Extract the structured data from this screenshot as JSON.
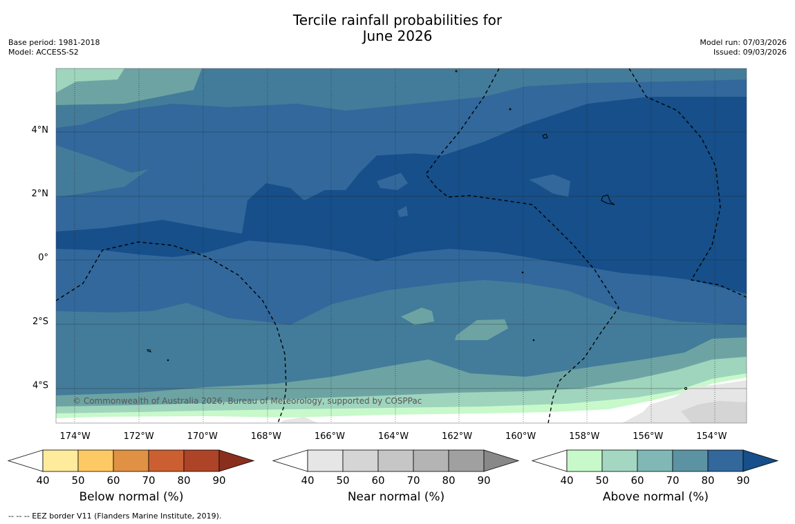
{
  "title": {
    "line1": "Tercile rainfall probabilities for",
    "line2": "June 2026"
  },
  "meta_left": {
    "base_period": "Base period: 1981-2018",
    "model": "Model: ACCESS-S2"
  },
  "meta_right": {
    "model_run": "Model run: 07/03/2026",
    "issued": "Issued: 09/03/2026"
  },
  "copyright": "© Commonwealth of Australia 2026, Bureau of Meteorology, supported by COSPPac",
  "footer": "--  --  -- EEZ border V11 (Flanders Marine Institute, 2019).",
  "colors": {
    "above_40": "#ffffff",
    "above_50": "#c7f9cb",
    "above_60": "#9fd4bd",
    "above_70": "#6da4a3",
    "above_80": "#437c9a",
    "above_90": "#32689b",
    "above_max": "#164f89",
    "island": "#000000"
  },
  "chart_data": {
    "type": "map",
    "title": "Tercile rainfall probabilities for June 2026",
    "lon_range": [
      -174.6,
      -152.9
    ],
    "lat_range": [
      -5.2,
      5.9
    ],
    "x_ticks": [
      "174°W",
      "172°W",
      "170°W",
      "168°W",
      "166°W",
      "164°W",
      "162°W",
      "160°W",
      "158°W",
      "156°W",
      "154°W"
    ],
    "x_tick_values": [
      -174,
      -172,
      -170,
      -168,
      -166,
      -164,
      -162,
      -160,
      -158,
      -156,
      -154
    ],
    "y_ticks": [
      "4°N",
      "2°N",
      "0°",
      "2°S",
      "4°S"
    ],
    "y_tick_values": [
      4,
      2,
      0,
      -2,
      -4
    ],
    "grid": true,
    "dominant_category": "Above normal",
    "colorbars": [
      {
        "name": "below",
        "label": "Below normal (%)",
        "ticks": [
          "40",
          "50",
          "60",
          "70",
          "80",
          "90"
        ],
        "colors": [
          "#ffffff",
          "#ffeb9c",
          "#fdc964",
          "#e09143",
          "#cb5f32",
          "#ad4428",
          "#8a2f1e"
        ]
      },
      {
        "name": "near",
        "label": "Near normal (%)",
        "ticks": [
          "40",
          "50",
          "60",
          "70",
          "80",
          "90"
        ],
        "colors": [
          "#ffffff",
          "#e6e6e6",
          "#d5d5d5",
          "#c6c6c6",
          "#b4b4b4",
          "#a0a0a0",
          "#888888"
        ]
      },
      {
        "name": "above",
        "label": "Above normal (%)",
        "ticks": [
          "40",
          "50",
          "60",
          "70",
          "80",
          "90"
        ],
        "colors": [
          "#ffffff",
          "#c7f9cb",
          "#a3d7c2",
          "#7fb8b4",
          "#5c93a3",
          "#32689b",
          "#164f89"
        ]
      }
    ]
  }
}
